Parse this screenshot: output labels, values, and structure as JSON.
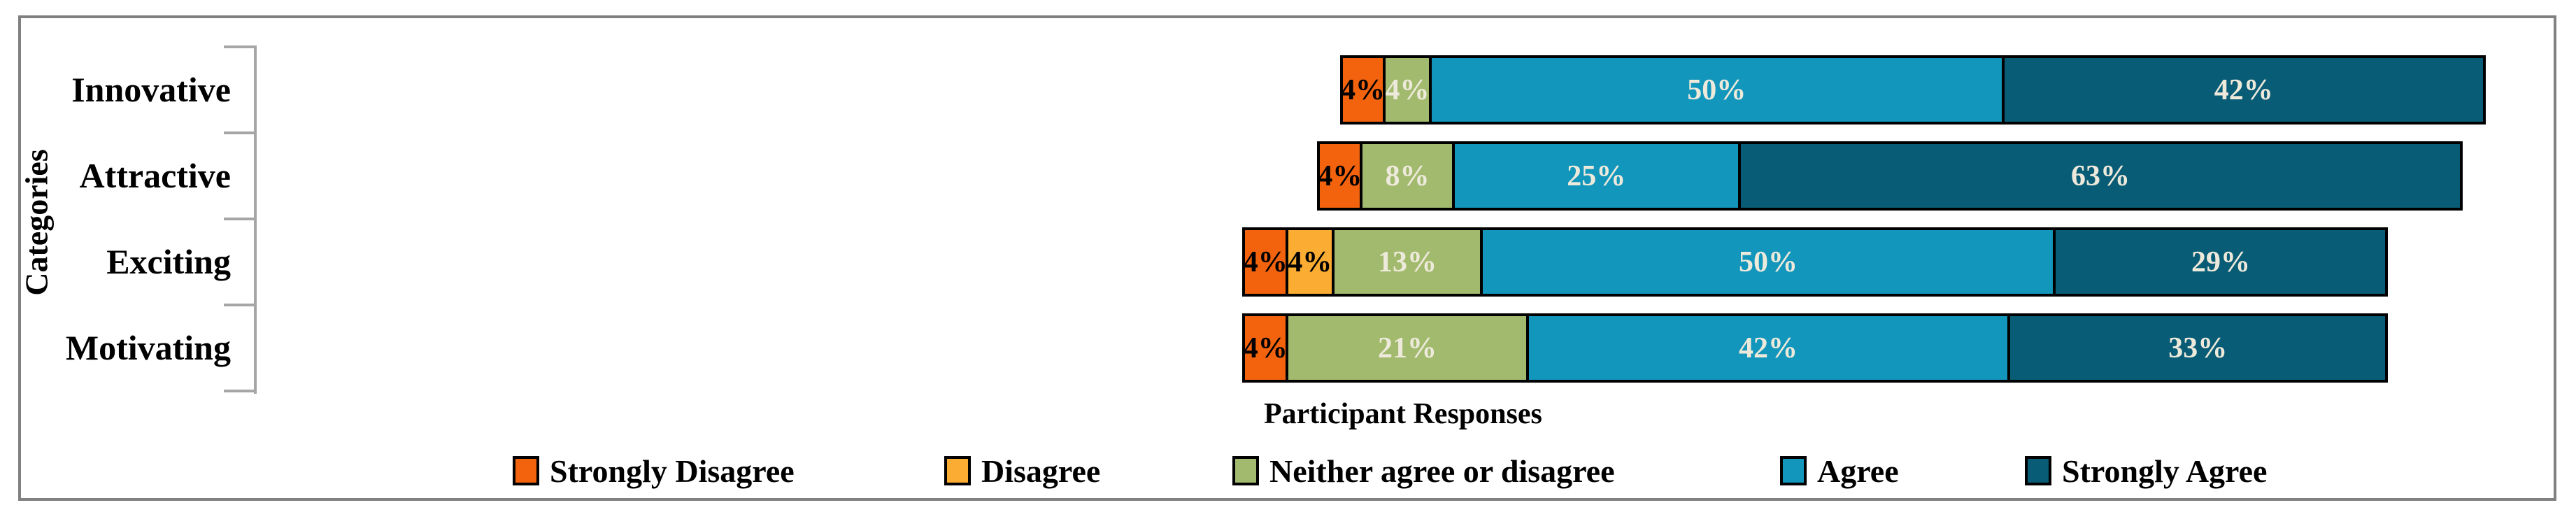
{
  "canvas": {
    "background": "#FFFFFF",
    "frame_color": "#808080"
  },
  "chart_data": {
    "type": "bar",
    "variant": "100%-stacked-horizontal-likert",
    "orientation": "horizontal",
    "alignment": "segments centered on neutral category",
    "align_anchor_series": "Neither agree or disagree",
    "title": "",
    "xlabel": "Participant Responses",
    "ylabel": "Categories",
    "categories": [
      "Innovative",
      "Attractive",
      "Exciting",
      "Motivating"
    ],
    "value_suffix": "%",
    "axis_color": "#A6A6A6",
    "bar_border_color": "#000000",
    "grid": false,
    "legend_position": "bottom",
    "series": [
      {
        "name": "Strongly Disagree",
        "color": "#F3630D",
        "label_color": "#000000",
        "values": [
          4,
          4,
          4,
          4
        ]
      },
      {
        "name": "Disagree",
        "color": "#FBAC33",
        "label_color": "#000000",
        "values": [
          0,
          0,
          4,
          0
        ]
      },
      {
        "name": "Neither agree or disagree",
        "color": "#A2BA6E",
        "label_color": "#EEEADB",
        "values": [
          4,
          8,
          13,
          21
        ]
      },
      {
        "name": "Agree",
        "color": "#1396BC",
        "label_color": "#EEEADB",
        "values": [
          50,
          25,
          50,
          42
        ]
      },
      {
        "name": "Strongly Agree",
        "color": "#085C76",
        "label_color": "#EEEADB",
        "values": [
          42,
          63,
          29,
          33
        ]
      }
    ]
  },
  "legend": {
    "items": [
      "Strongly Disagree",
      "Disagree",
      "Neither agree or disagree",
      "Agree",
      "Strongly Agree"
    ]
  }
}
